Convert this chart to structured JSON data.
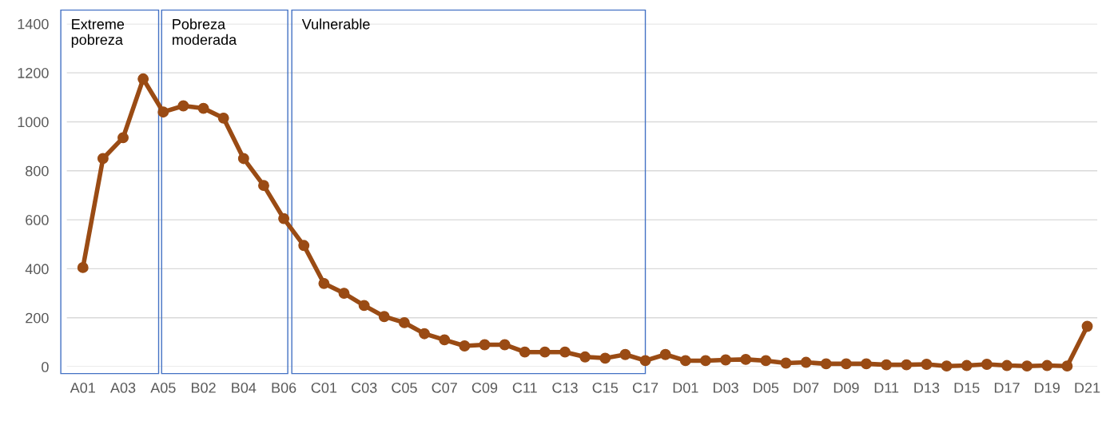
{
  "chart_data": {
    "type": "line",
    "categories": [
      "A01",
      null,
      "A03",
      null,
      "A05",
      null,
      "B02",
      null,
      "B04",
      null,
      "B06",
      null,
      "C01",
      null,
      "C03",
      null,
      "C05",
      null,
      "C07",
      null,
      "C09",
      null,
      "C11",
      null,
      "C13",
      null,
      "C15",
      null,
      "C17",
      null,
      "D01",
      null,
      "D03",
      null,
      "D05",
      null,
      "D07",
      null,
      "D09",
      null,
      "D11",
      null,
      "D13",
      null,
      "D15",
      null,
      "D17",
      null,
      "D19",
      null,
      "D21"
    ],
    "series": [
      {
        "color": "#9a4b14",
        "values": [
          405,
          850,
          935,
          1175,
          1040,
          1065,
          1055,
          1015,
          850,
          740,
          605,
          495,
          340,
          300,
          250,
          205,
          180,
          135,
          110,
          85,
          90,
          90,
          60,
          60,
          60,
          40,
          35,
          50,
          25,
          50,
          25,
          25,
          28,
          30,
          25,
          15,
          18,
          12,
          12,
          12,
          8,
          8,
          10,
          3,
          5,
          10,
          5,
          3,
          5,
          3,
          165
        ]
      }
    ],
    "ylim": [
      0,
      1400
    ],
    "yticks": [
      0,
      200,
      400,
      600,
      800,
      1000,
      1200,
      1400
    ],
    "grid": "y",
    "marker": "circle",
    "line_style": "solid",
    "legend": false,
    "annotations": [
      "Extreme\npobreza",
      "Pobreza\nmoderada",
      "Vulnerable"
    ]
  }
}
